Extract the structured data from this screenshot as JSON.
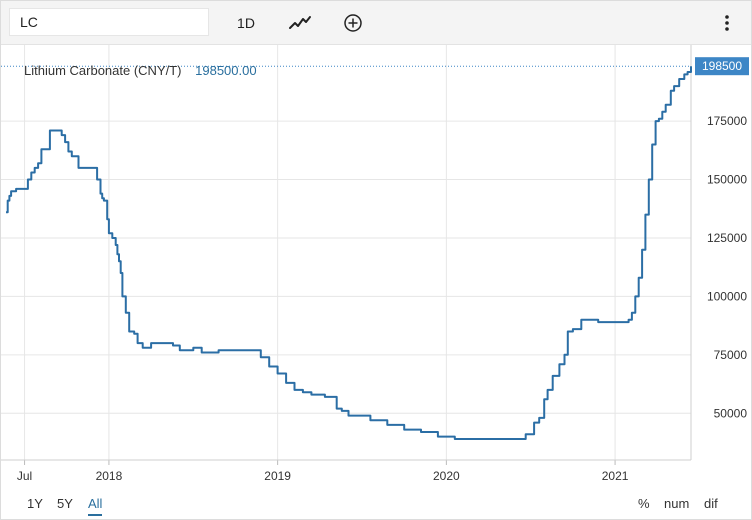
{
  "toolbar": {
    "symbol": "LC",
    "range_label": "1D",
    "chart_type_icon": "line-chart-icon",
    "add_icon": "plus-circle-icon",
    "menu_icon": "vertical-ellipsis-icon"
  },
  "legend": {
    "name": "Lithium Carbonate (CNY/T)",
    "value": "198500.00"
  },
  "colors": {
    "line": "#2b6ea5",
    "badge": "#3d86c6",
    "grid": "#e6e6e6",
    "axis_text": "#333333"
  },
  "footer": {
    "ranges": [
      "1Y",
      "5Y",
      "All"
    ],
    "active_range": "All",
    "modes": [
      "%",
      "num",
      "dif"
    ]
  },
  "chart_data": {
    "type": "line",
    "title": "",
    "xlabel": "",
    "ylabel": "",
    "x_ticks": [
      "Jul",
      "2018",
      "2019",
      "2020",
      "2021"
    ],
    "x_tick_dates": [
      2017.5,
      2018.0,
      2019.0,
      2020.0,
      2021.0
    ],
    "xlim": [
      2017.39,
      2021.45
    ],
    "y_ticks": [
      50000,
      75000,
      100000,
      125000,
      150000,
      175000
    ],
    "y_tick_labels": [
      "50000",
      "75000",
      "100000",
      "125000",
      "150000",
      "175000"
    ],
    "ylim": [
      30000,
      205000
    ],
    "last_value": 198500,
    "last_value_label": "198500",
    "grid": true,
    "series": [
      {
        "x": [
          2017.39,
          2017.4,
          2017.41,
          2017.42,
          2017.45,
          2017.52,
          2017.54,
          2017.56,
          2017.58,
          2017.6,
          2017.65,
          2017.7,
          2017.72,
          2017.74,
          2017.76,
          2017.78,
          2017.82,
          2017.86,
          2017.88,
          2017.9,
          2017.93,
          2017.95,
          2017.96,
          2017.97,
          2017.98,
          2017.99,
          2018.0,
          2018.02,
          2018.04,
          2018.05,
          2018.06,
          2018.07,
          2018.08,
          2018.1,
          2018.12,
          2018.15,
          2018.17,
          2018.2,
          2018.25,
          2018.3,
          2018.35,
          2018.38,
          2018.42,
          2018.5,
          2018.55,
          2018.6,
          2018.65,
          2018.75,
          2018.8,
          2018.9,
          2018.95,
          2019.0,
          2019.05,
          2019.1,
          2019.15,
          2019.2,
          2019.28,
          2019.35,
          2019.38,
          2019.42,
          2019.5,
          2019.55,
          2019.65,
          2019.75,
          2019.85,
          2019.95,
          2020.05,
          2020.15,
          2020.25,
          2020.35,
          2020.42,
          2020.47,
          2020.52,
          2020.55,
          2020.58,
          2020.6,
          2020.63,
          2020.67,
          2020.7,
          2020.72,
          2020.75,
          2020.8,
          2020.9,
          2021.0,
          2021.05,
          2021.08,
          2021.1,
          2021.12,
          2021.14,
          2021.16,
          2021.18,
          2021.2,
          2021.22,
          2021.24,
          2021.26,
          2021.28,
          2021.3,
          2021.33,
          2021.35,
          2021.38,
          2021.41,
          2021.43,
          2021.45
        ],
        "y": [
          136000,
          141000,
          143000,
          145000,
          146000,
          150000,
          153000,
          155000,
          157000,
          163000,
          171000,
          171000,
          169000,
          166000,
          162000,
          160000,
          155000,
          155000,
          155000,
          155000,
          150000,
          144000,
          142000,
          141000,
          141000,
          133000,
          127000,
          125000,
          122000,
          118000,
          115000,
          110000,
          100000,
          93000,
          85000,
          84000,
          80000,
          78000,
          80000,
          80000,
          80000,
          79000,
          77000,
          78000,
          76000,
          76000,
          77000,
          77000,
          77000,
          74000,
          70000,
          67000,
          63000,
          60000,
          59000,
          58000,
          57000,
          52000,
          51000,
          49000,
          49000,
          47000,
          45000,
          43000,
          42000,
          40000,
          39000,
          39000,
          39000,
          39000,
          39000,
          41000,
          46000,
          48000,
          56000,
          60000,
          66000,
          71000,
          75000,
          85000,
          86000,
          90000,
          89000,
          89000,
          89000,
          90000,
          93000,
          100000,
          108000,
          120000,
          135000,
          150000,
          165000,
          175000,
          176000,
          179000,
          182000,
          188000,
          190000,
          193000,
          195000,
          196000,
          198500
        ]
      }
    ]
  }
}
